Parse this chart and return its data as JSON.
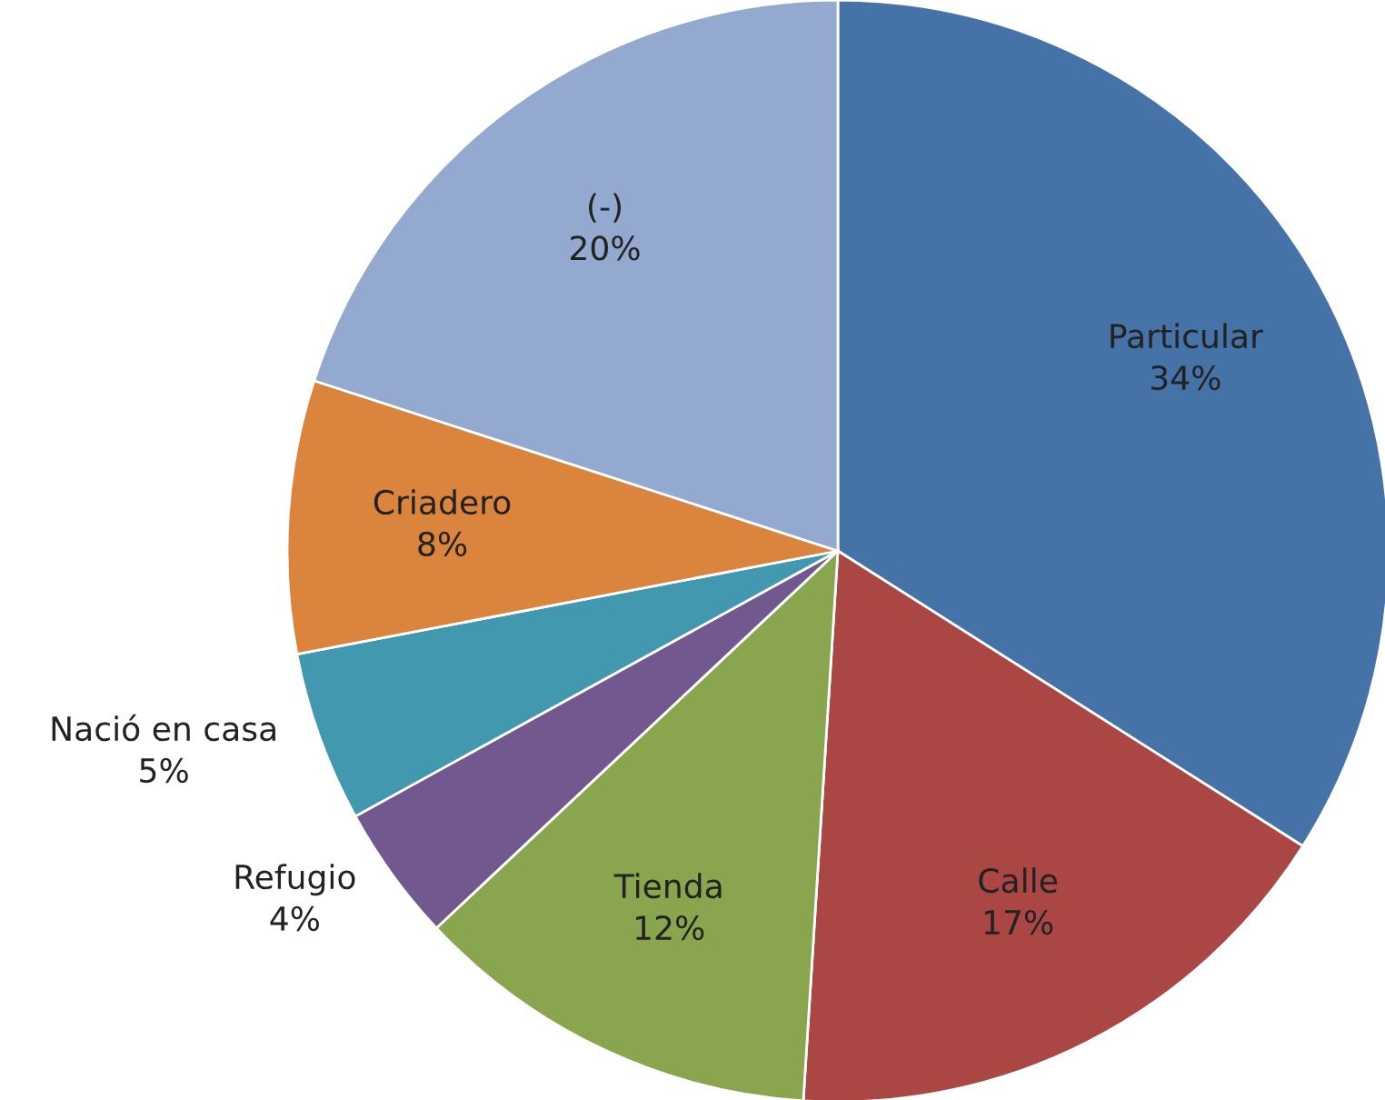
{
  "chart_data": {
    "type": "pie",
    "categories": [
      "Particular",
      "Calle",
      "Tienda",
      "Refugio",
      "Nació en casa",
      "Criadero",
      "(-)"
    ],
    "values": [
      34,
      17,
      12,
      4,
      5,
      8,
      20
    ],
    "value_labels": [
      "34%",
      "17%",
      "12%",
      "4%",
      "5%",
      "8%",
      "20%"
    ],
    "colors": [
      "#4572a7",
      "#aa4643",
      "#89a54e",
      "#71588f",
      "#4198af",
      "#db843d",
      "#93a9cf"
    ],
    "legend": false
  }
}
